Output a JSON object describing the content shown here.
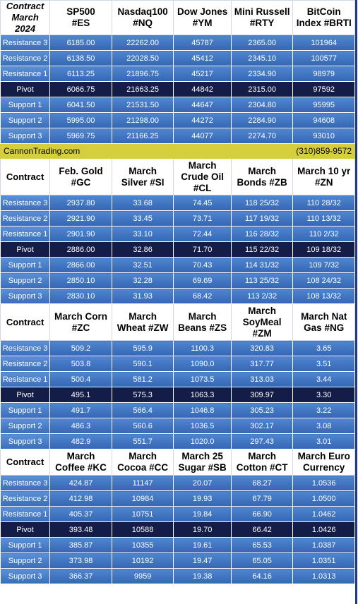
{
  "row_labels": [
    "Resistance 3",
    "Resistance 2",
    "Resistance 1",
    "Pivot",
    "Support 1",
    "Support 2",
    "Support 3"
  ],
  "banner": {
    "site": "CannonTrading.com",
    "phone": "(310)859-9572"
  },
  "colors": {
    "row_blue": "#3f74c2",
    "pivot_navy": "#141d48",
    "banner_yellow": "#d5cf3d",
    "header_white": "#ffffff"
  },
  "sections": [
    {
      "corner": [
        "Contract",
        "March 2024"
      ],
      "headers": [
        [
          "SP500",
          "#ES"
        ],
        [
          "Nasdaq100",
          "#NQ"
        ],
        [
          "Dow Jones",
          "#YM"
        ],
        [
          "Mini Russell",
          "#RTY"
        ],
        [
          "BitCoin",
          "Index #BRTI"
        ]
      ],
      "rows": [
        [
          "6185.00",
          "22262.00",
          "45787",
          "2365.00",
          "101964"
        ],
        [
          "6138.50",
          "22028.50",
          "45412",
          "2345.10",
          "100577"
        ],
        [
          "6113.25",
          "21896.75",
          "45217",
          "2334.90",
          "98979"
        ],
        [
          "6066.75",
          "21663.25",
          "44842",
          "2315.00",
          "97592"
        ],
        [
          "6041.50",
          "21531.50",
          "44647",
          "2304.80",
          "95995"
        ],
        [
          "5995.00",
          "21298.00",
          "44272",
          "2284.90",
          "94608"
        ],
        [
          "5969.75",
          "21166.25",
          "44077",
          "2274.70",
          "93010"
        ]
      ]
    },
    {
      "corner": [
        "Contract"
      ],
      "headers": [
        [
          "Feb. Gold",
          "#GC"
        ],
        [
          "March",
          "Silver #SI"
        ],
        [
          "March",
          "Crude Oil",
          "#CL"
        ],
        [
          "March",
          "Bonds  #ZB"
        ],
        [
          "March 10 yr",
          "#ZN"
        ]
      ],
      "rows": [
        [
          "2937.80",
          "33.68",
          "74.45",
          "118 25/32",
          "110 28/32"
        ],
        [
          "2921.90",
          "33.45",
          "73.71",
          "117 19/32",
          "110 13/32"
        ],
        [
          "2901.90",
          "33.10",
          "72.44",
          "116 28/32",
          "110  2/32"
        ],
        [
          "2886.00",
          "32.86",
          "71.70",
          "115 22/32",
          "109 18/32"
        ],
        [
          "2866.00",
          "32.51",
          "70.43",
          "114 31/32",
          "109  7/32"
        ],
        [
          "2850.10",
          "32.28",
          "69.69",
          "113 25/32",
          "108 24/32"
        ],
        [
          "2830.10",
          "31.93",
          "68.42",
          "113  2/32",
          "108 13/32"
        ]
      ]
    },
    {
      "corner": [
        "Contract"
      ],
      "headers": [
        [
          "March Corn",
          "#ZC"
        ],
        [
          "March",
          "Wheat #ZW"
        ],
        [
          "March",
          "Beans #ZS"
        ],
        [
          "March",
          "SoyMeal",
          "#ZM"
        ],
        [
          "March Nat",
          "Gas #NG"
        ]
      ],
      "rows": [
        [
          "509.2",
          "595.9",
          "1100.3",
          "320.83",
          "3.65"
        ],
        [
          "503.8",
          "590.1",
          "1090.0",
          "317.77",
          "3.51"
        ],
        [
          "500.4",
          "581.2",
          "1073.5",
          "313.03",
          "3.44"
        ],
        [
          "495.1",
          "575.3",
          "1063.3",
          "309.97",
          "3.30"
        ],
        [
          "491.7",
          "566.4",
          "1046.8",
          "305.23",
          "3.22"
        ],
        [
          "486.3",
          "560.6",
          "1036.5",
          "302.17",
          "3.08"
        ],
        [
          "482.9",
          "551.7",
          "1020.0",
          "297.43",
          "3.01"
        ]
      ]
    },
    {
      "corner": [
        "Contract"
      ],
      "headers": [
        [
          "March",
          "Coffee #KC"
        ],
        [
          "March",
          "Cocoa #CC"
        ],
        [
          "March 25",
          "Sugar #SB"
        ],
        [
          "March",
          "Cotton #CT"
        ],
        [
          "March Euro",
          "Currency"
        ]
      ],
      "rows": [
        [
          "424.87",
          "11147",
          "20.07",
          "68.27",
          "1.0536"
        ],
        [
          "412.98",
          "10984",
          "19.93",
          "67.79",
          "1.0500"
        ],
        [
          "405.37",
          "10751",
          "19.84",
          "66.90",
          "1.0462"
        ],
        [
          "393.48",
          "10588",
          "19.70",
          "66.42",
          "1.0426"
        ],
        [
          "385.87",
          "10355",
          "19.61",
          "65.53",
          "1.0387"
        ],
        [
          "373.98",
          "10192",
          "19.47",
          "65.05",
          "1.0351"
        ],
        [
          "366.37",
          "9959",
          "19.38",
          "64.16",
          "1.0313"
        ]
      ]
    }
  ]
}
